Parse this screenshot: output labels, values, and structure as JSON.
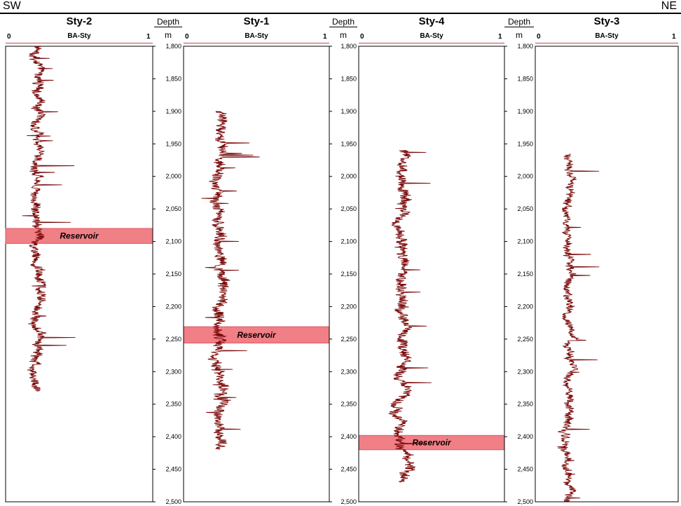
{
  "header": {
    "left": "SW",
    "right": "NE"
  },
  "depth_track": {
    "title": "Depth",
    "unit": "m"
  },
  "colors": {
    "curve": "#7b0a0a",
    "reservoir": "#f07f86",
    "scale_line": "#c0504d"
  },
  "chart_data": {
    "type": "line",
    "y_axis": {
      "label": "Depth",
      "unit": "m",
      "ylim": [
        1800,
        2500
      ],
      "reversed": true,
      "tick_step": 50,
      "tick_labels": [
        "1,800",
        "1,850",
        "1,900",
        "1,950",
        "2,000",
        "2,050",
        "2,100",
        "2,150",
        "2,200",
        "2,250",
        "2,300",
        "2,350",
        "2,400",
        "2,450",
        "2,500"
      ]
    },
    "x_axis": {
      "curve": "BA-Sty",
      "xlim": [
        0,
        1
      ],
      "scale_left": "0",
      "scale_right": "1"
    },
    "tracks": [
      {
        "well": "Sty-2",
        "curve": "BA-Sty",
        "scale_left": "0",
        "scale_right": "1",
        "depth_range": [
          1800,
          2330
        ],
        "mean": 0.22,
        "amp": 0.06,
        "reservoir": {
          "label": "Reservoir",
          "top": 2080,
          "base": 2103
        }
      },
      {
        "well": "Sty-1",
        "curve": "BA-Sty",
        "scale_left": "0",
        "scale_right": "1",
        "depth_range": [
          1900,
          2420
        ],
        "mean": 0.25,
        "amp": 0.07,
        "reservoir": {
          "label": "Reservoir",
          "top": 2231,
          "base": 2256
        }
      },
      {
        "well": "Sty-4",
        "curve": "BA-Sty",
        "scale_left": "0",
        "scale_right": "1",
        "depth_range": [
          1960,
          2470
        ],
        "mean": 0.3,
        "amp": 0.07,
        "reservoir": {
          "label": "Reservoir",
          "top": 2398,
          "base": 2420
        }
      },
      {
        "well": "Sty-3",
        "curve": "BA-Sty",
        "scale_left": "0",
        "scale_right": "1",
        "depth_range": [
          1965,
          2500
        ],
        "mean": 0.23,
        "amp": 0.05,
        "reservoir": null
      }
    ]
  }
}
